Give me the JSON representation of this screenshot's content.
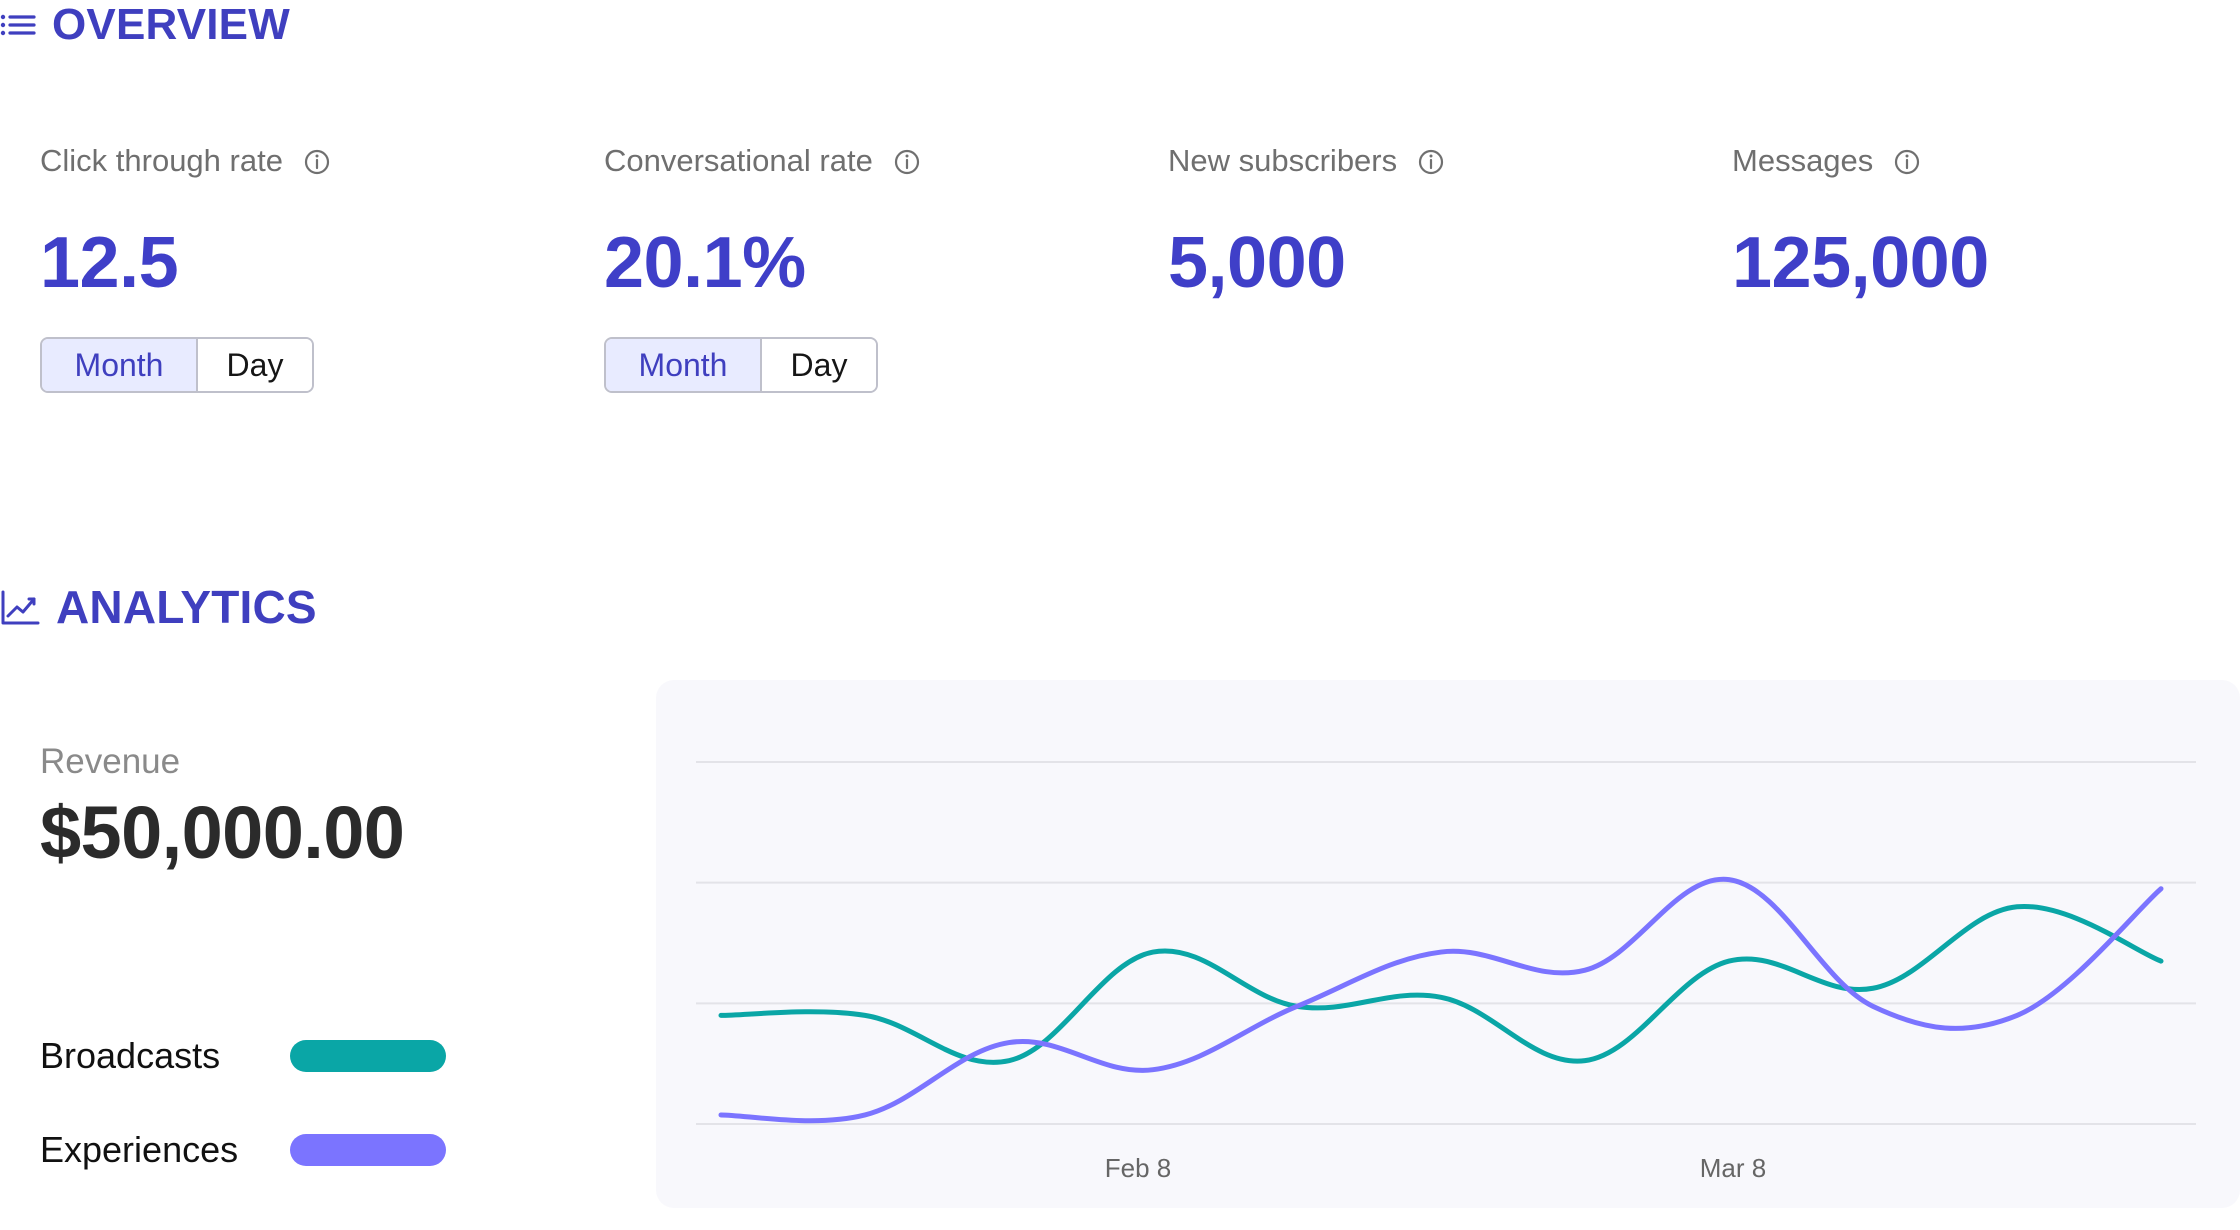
{
  "overview": {
    "title": "OVERVIEW",
    "icon": "list-icon",
    "metrics": [
      {
        "label": "Click through rate",
        "value": "12.5",
        "info_icon": "info-icon",
        "segments": [
          "Month",
          "Day"
        ],
        "selected": "Month"
      },
      {
        "label": "Conversational rate",
        "value": "20.1%",
        "info_icon": "info-icon",
        "segments": [
          "Month",
          "Day"
        ],
        "selected": "Month"
      },
      {
        "label": "New subscribers",
        "value": "5,000",
        "info_icon": "info-icon"
      },
      {
        "label": "Messages",
        "value": "125,000",
        "info_icon": "info-icon"
      }
    ]
  },
  "analytics": {
    "title": "ANALYTICS",
    "icon": "trend-chart-icon",
    "revenue": {
      "label": "Revenue",
      "value": "$50,000.00"
    },
    "legend": [
      {
        "label": "Broadcasts",
        "color": "#0aa6a6"
      },
      {
        "label": "Experiences",
        "color": "#7b74ff"
      }
    ]
  },
  "colors": {
    "accent": "#3f3fc8",
    "chart_background": "#f8f8fc",
    "grid": "#e3e3e8",
    "broadcasts": "#0aa6a6",
    "experiences": "#7b74ff",
    "axis_text": "#666666"
  },
  "chart_data": {
    "type": "line",
    "xlabel": "",
    "ylabel": "",
    "x_ticks": [
      "Feb 8",
      "Mar 8"
    ],
    "grid": true,
    "ylim": [
      0,
      4
    ],
    "series": [
      {
        "name": "Broadcasts",
        "color": "#0aa6a6",
        "values": [
          1.2,
          1.2,
          0.7,
          1.9,
          1.3,
          1.4,
          0.7,
          1.8,
          1.5,
          2.4,
          1.8
        ]
      },
      {
        "name": "Experiences",
        "color": "#7b74ff",
        "values": [
          0.1,
          0.1,
          0.9,
          0.6,
          1.3,
          1.9,
          1.7,
          2.7,
          1.3,
          1.2,
          2.6
        ]
      }
    ]
  }
}
